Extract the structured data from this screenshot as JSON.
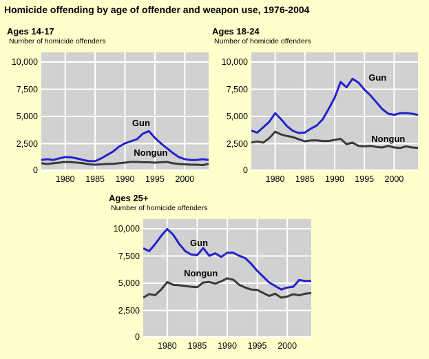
{
  "page_title": "Homicide offending by age of offender and weapon use, 1976-2004",
  "colors": {
    "page_bg": "#FFFFCC",
    "plot_bg": "#D1D1D1",
    "grid": "#FFFFFF",
    "gun": "#2222CC",
    "nongun": "#3A3A3A",
    "text": "#000000"
  },
  "chart_data": [
    {
      "type": "line",
      "title": "Ages 14-17",
      "ylabel": "Number of homicide offenders",
      "x": [
        1976,
        1977,
        1978,
        1979,
        1980,
        1981,
        1982,
        1983,
        1984,
        1985,
        1986,
        1987,
        1988,
        1989,
        1990,
        1991,
        1992,
        1993,
        1994,
        1995,
        1996,
        1997,
        1998,
        1999,
        2000,
        2001,
        2002,
        2003,
        2004
      ],
      "xticks": [
        1980,
        1985,
        1990,
        1995,
        2000
      ],
      "yticks": [
        0,
        2500,
        5000,
        7500,
        10000
      ],
      "ytick_labels": [
        "0",
        "2,500",
        "5,000",
        "7,500",
        "10,000"
      ],
      "ylim": [
        0,
        10886
      ],
      "grid": true,
      "legend_position": "inline-annotations",
      "series": [
        {
          "name": "Gun",
          "color": "#2222CC",
          "values": [
            1000,
            1075,
            1000,
            1150,
            1270,
            1250,
            1140,
            1000,
            900,
            890,
            1140,
            1460,
            1770,
            2220,
            2530,
            2720,
            2910,
            3420,
            3650,
            3040,
            2530,
            2090,
            1650,
            1270,
            1075,
            1000,
            1000,
            1075,
            1000
          ]
        },
        {
          "name": "Nongun",
          "color": "#3A3A3A",
          "values": [
            700,
            630,
            700,
            760,
            820,
            800,
            760,
            700,
            600,
            570,
            600,
            640,
            640,
            700,
            760,
            820,
            820,
            790,
            790,
            760,
            790,
            820,
            700,
            630,
            600,
            570,
            570,
            540,
            630
          ]
        }
      ],
      "annotations": [
        {
          "text": "Gun",
          "x": 1992.7,
          "y": 4400
        },
        {
          "text": "Nongun",
          "x": 1994.3,
          "y": 1650
        }
      ]
    },
    {
      "type": "line",
      "title": "Ages 18-24",
      "ylabel": "Number of homicide offenders",
      "x": [
        1976,
        1977,
        1978,
        1979,
        1980,
        1981,
        1982,
        1983,
        1984,
        1985,
        1986,
        1987,
        1988,
        1989,
        1990,
        1991,
        1992,
        1993,
        1994,
        1995,
        1996,
        1997,
        1998,
        1999,
        2000,
        2001,
        2002,
        2003,
        2004
      ],
      "xticks": [
        1980,
        1985,
        1990,
        1995,
        2000
      ],
      "yticks": [
        0,
        2500,
        5000,
        7500,
        10000
      ],
      "ytick_labels": [
        "0",
        "2,500",
        "5,000",
        "7,500",
        "10,000"
      ],
      "ylim": [
        0,
        10886
      ],
      "grid": true,
      "legend_position": "inline-annotations",
      "series": [
        {
          "name": "Gun",
          "color": "#2222CC",
          "values": [
            3700,
            3520,
            4000,
            4500,
            5300,
            4750,
            4100,
            3670,
            3480,
            3520,
            3880,
            4180,
            4750,
            5700,
            6730,
            8170,
            7680,
            8460,
            8100,
            7470,
            6940,
            6310,
            5680,
            5250,
            5150,
            5300,
            5300,
            5250,
            5150
          ]
        },
        {
          "name": "Nongun",
          "color": "#3A3A3A",
          "values": [
            2600,
            2700,
            2600,
            3000,
            3600,
            3350,
            3200,
            3100,
            2900,
            2720,
            2800,
            2800,
            2750,
            2750,
            2850,
            2950,
            2450,
            2600,
            2300,
            2250,
            2300,
            2200,
            2150,
            2300,
            2150,
            2100,
            2250,
            2150,
            2100
          ]
        }
      ],
      "annotations": [
        {
          "text": "Gun",
          "x": 1997.2,
          "y": 8550
        },
        {
          "text": "Nongun",
          "x": 1999.0,
          "y": 2950
        }
      ]
    },
    {
      "type": "line",
      "title": "Ages 25+",
      "ylabel": "Number of homicide offenders",
      "x": [
        1976,
        1977,
        1978,
        1979,
        1980,
        1981,
        1982,
        1983,
        1984,
        1985,
        1986,
        1987,
        1988,
        1989,
        1990,
        1991,
        1992,
        1993,
        1994,
        1995,
        1996,
        1997,
        1998,
        1999,
        2000,
        2001,
        2002,
        2003,
        2004
      ],
      "xticks": [
        1980,
        1985,
        1990,
        1995,
        2000
      ],
      "yticks": [
        0,
        2500,
        5000,
        7500,
        10000
      ],
      "ytick_labels": [
        "0",
        "2,500",
        "5,000",
        "7,500",
        "10,000"
      ],
      "ylim": [
        0,
        10886
      ],
      "grid": true,
      "legend_position": "inline-annotations",
      "series": [
        {
          "name": "Gun",
          "color": "#2222CC",
          "values": [
            8200,
            7950,
            8600,
            9350,
            9980,
            9450,
            8600,
            7950,
            7630,
            7590,
            8230,
            7520,
            7740,
            7420,
            7800,
            7800,
            7520,
            7310,
            6770,
            6130,
            5600,
            5060,
            4740,
            4420,
            4600,
            4680,
            5300,
            5200,
            5200
          ]
        },
        {
          "name": "Nongun",
          "color": "#3A3A3A",
          "values": [
            3670,
            4000,
            3900,
            4420,
            5100,
            4850,
            4810,
            4740,
            4680,
            4640,
            5060,
            5110,
            4960,
            5170,
            5450,
            5320,
            4850,
            4600,
            4420,
            4380,
            4100,
            3830,
            4040,
            3670,
            3780,
            3990,
            3890,
            4040,
            4100
          ]
        }
      ],
      "annotations": [
        {
          "text": "Gun",
          "x": 1985.3,
          "y": 8700
        },
        {
          "text": "Nongun",
          "x": 1985.6,
          "y": 5900
        }
      ]
    }
  ]
}
